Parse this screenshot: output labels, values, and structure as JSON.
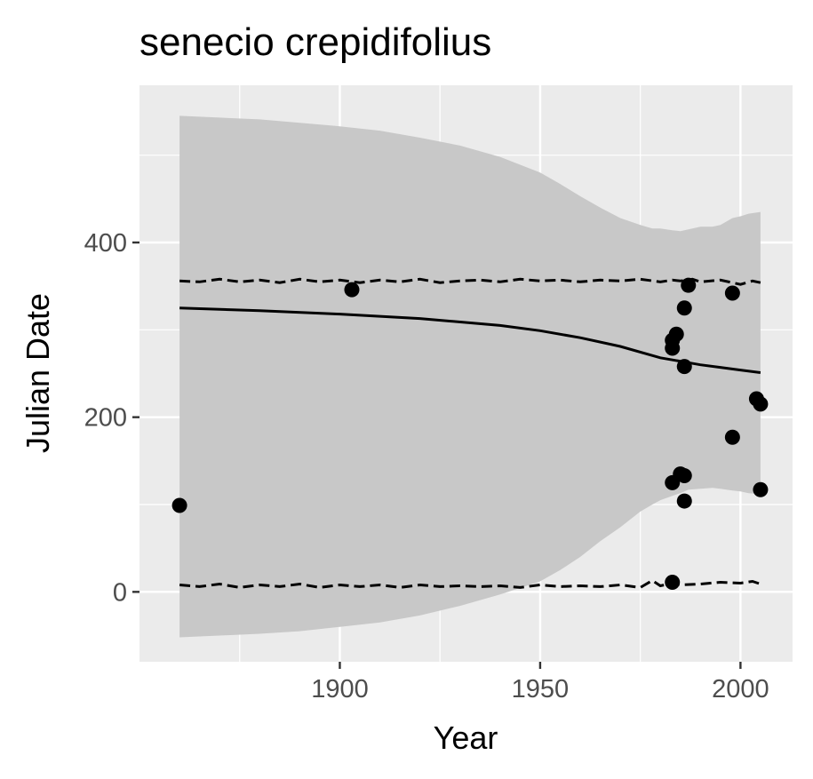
{
  "chart_data": {
    "type": "scatter",
    "title": "senecio crepidifolius",
    "xlabel": "Year",
    "ylabel": "Julian Date",
    "xlim": [
      1850,
      2013
    ],
    "ylim": [
      -80,
      580
    ],
    "x_ticks": [
      1900,
      1950,
      2000
    ],
    "x_tick_labels": [
      "1900",
      "1950",
      "2000"
    ],
    "x_minor": [
      1875,
      1925,
      1975
    ],
    "y_ticks": [
      0,
      200,
      400
    ],
    "y_tick_labels": [
      "0",
      "200",
      "400"
    ],
    "y_minor": [
      100,
      300,
      500
    ],
    "grid": true,
    "colors": {
      "panel": "#ebebeb",
      "grid": "#ffffff",
      "ribbon": "#c8c8c8",
      "points": "#000000",
      "lines": "#000000"
    },
    "points": [
      {
        "x": 1860,
        "y": 99
      },
      {
        "x": 1903,
        "y": 346
      },
      {
        "x": 1983,
        "y": 11
      },
      {
        "x": 1983,
        "y": 125
      },
      {
        "x": 1983,
        "y": 279
      },
      {
        "x": 1983,
        "y": 288
      },
      {
        "x": 1984,
        "y": 295
      },
      {
        "x": 1985,
        "y": 135
      },
      {
        "x": 1986,
        "y": 133
      },
      {
        "x": 1986,
        "y": 104
      },
      {
        "x": 1986,
        "y": 258
      },
      {
        "x": 1986,
        "y": 325
      },
      {
        "x": 1987,
        "y": 351
      },
      {
        "x": 1998,
        "y": 342
      },
      {
        "x": 1998,
        "y": 177
      },
      {
        "x": 2004,
        "y": 221
      },
      {
        "x": 2005,
        "y": 215
      },
      {
        "x": 2005,
        "y": 117
      }
    ],
    "fit_line": {
      "x": [
        1860,
        1880,
        1900,
        1920,
        1940,
        1950,
        1960,
        1970,
        1980,
        1985,
        1990,
        1995,
        2000,
        2005
      ],
      "y": [
        325,
        322,
        318,
        313,
        305,
        299,
        291,
        281,
        268,
        264,
        260,
        257,
        254,
        251
      ]
    },
    "ribbon": {
      "x": [
        1860,
        1870,
        1880,
        1890,
        1900,
        1910,
        1920,
        1930,
        1940,
        1950,
        1955,
        1960,
        1965,
        1970,
        1975,
        1978,
        1980,
        1983,
        1985,
        1987,
        1990,
        1993,
        1995,
        1998,
        2000,
        2002,
        2005
      ],
      "upper": [
        545,
        543,
        541,
        537,
        533,
        528,
        520,
        511,
        498,
        480,
        467,
        453,
        440,
        428,
        420,
        416,
        416,
        414,
        413,
        415,
        418,
        418,
        420,
        428,
        430,
        433,
        435
      ],
      "lower": [
        -52,
        -50,
        -48,
        -45,
        -40,
        -35,
        -27,
        -16,
        -3,
        12,
        25,
        40,
        58,
        74,
        92,
        100,
        105,
        110,
        113,
        117,
        118,
        119,
        118,
        116,
        115,
        113,
        112
      ]
    },
    "upper_dashed": {
      "x": [
        1860,
        1865,
        1870,
        1875,
        1880,
        1885,
        1890,
        1895,
        1900,
        1905,
        1910,
        1915,
        1920,
        1925,
        1930,
        1935,
        1940,
        1945,
        1950,
        1955,
        1960,
        1965,
        1970,
        1975,
        1980,
        1983,
        1985,
        1988,
        1990,
        1995,
        2000,
        2003,
        2005
      ],
      "y": [
        356,
        355,
        358,
        355,
        357,
        354,
        358,
        355,
        357,
        354,
        357,
        355,
        358,
        354,
        356,
        357,
        355,
        358,
        356,
        357,
        355,
        357,
        356,
        358,
        355,
        357,
        356,
        358,
        355,
        357,
        352,
        356,
        354
      ]
    },
    "lower_dashed": {
      "x": [
        1860,
        1865,
        1870,
        1875,
        1880,
        1885,
        1890,
        1895,
        1900,
        1905,
        1910,
        1915,
        1920,
        1925,
        1930,
        1935,
        1940,
        1945,
        1950,
        1955,
        1960,
        1965,
        1970,
        1975,
        1978,
        1980,
        1983,
        1985,
        1990,
        1995,
        2000,
        2003,
        2005
      ],
      "y": [
        8,
        6,
        9,
        5,
        8,
        6,
        9,
        5,
        8,
        6,
        8,
        5,
        8,
        6,
        7,
        6,
        7,
        5,
        8,
        6,
        7,
        6,
        8,
        5,
        13,
        7,
        10,
        8,
        9,
        11,
        10,
        12,
        9
      ]
    }
  }
}
